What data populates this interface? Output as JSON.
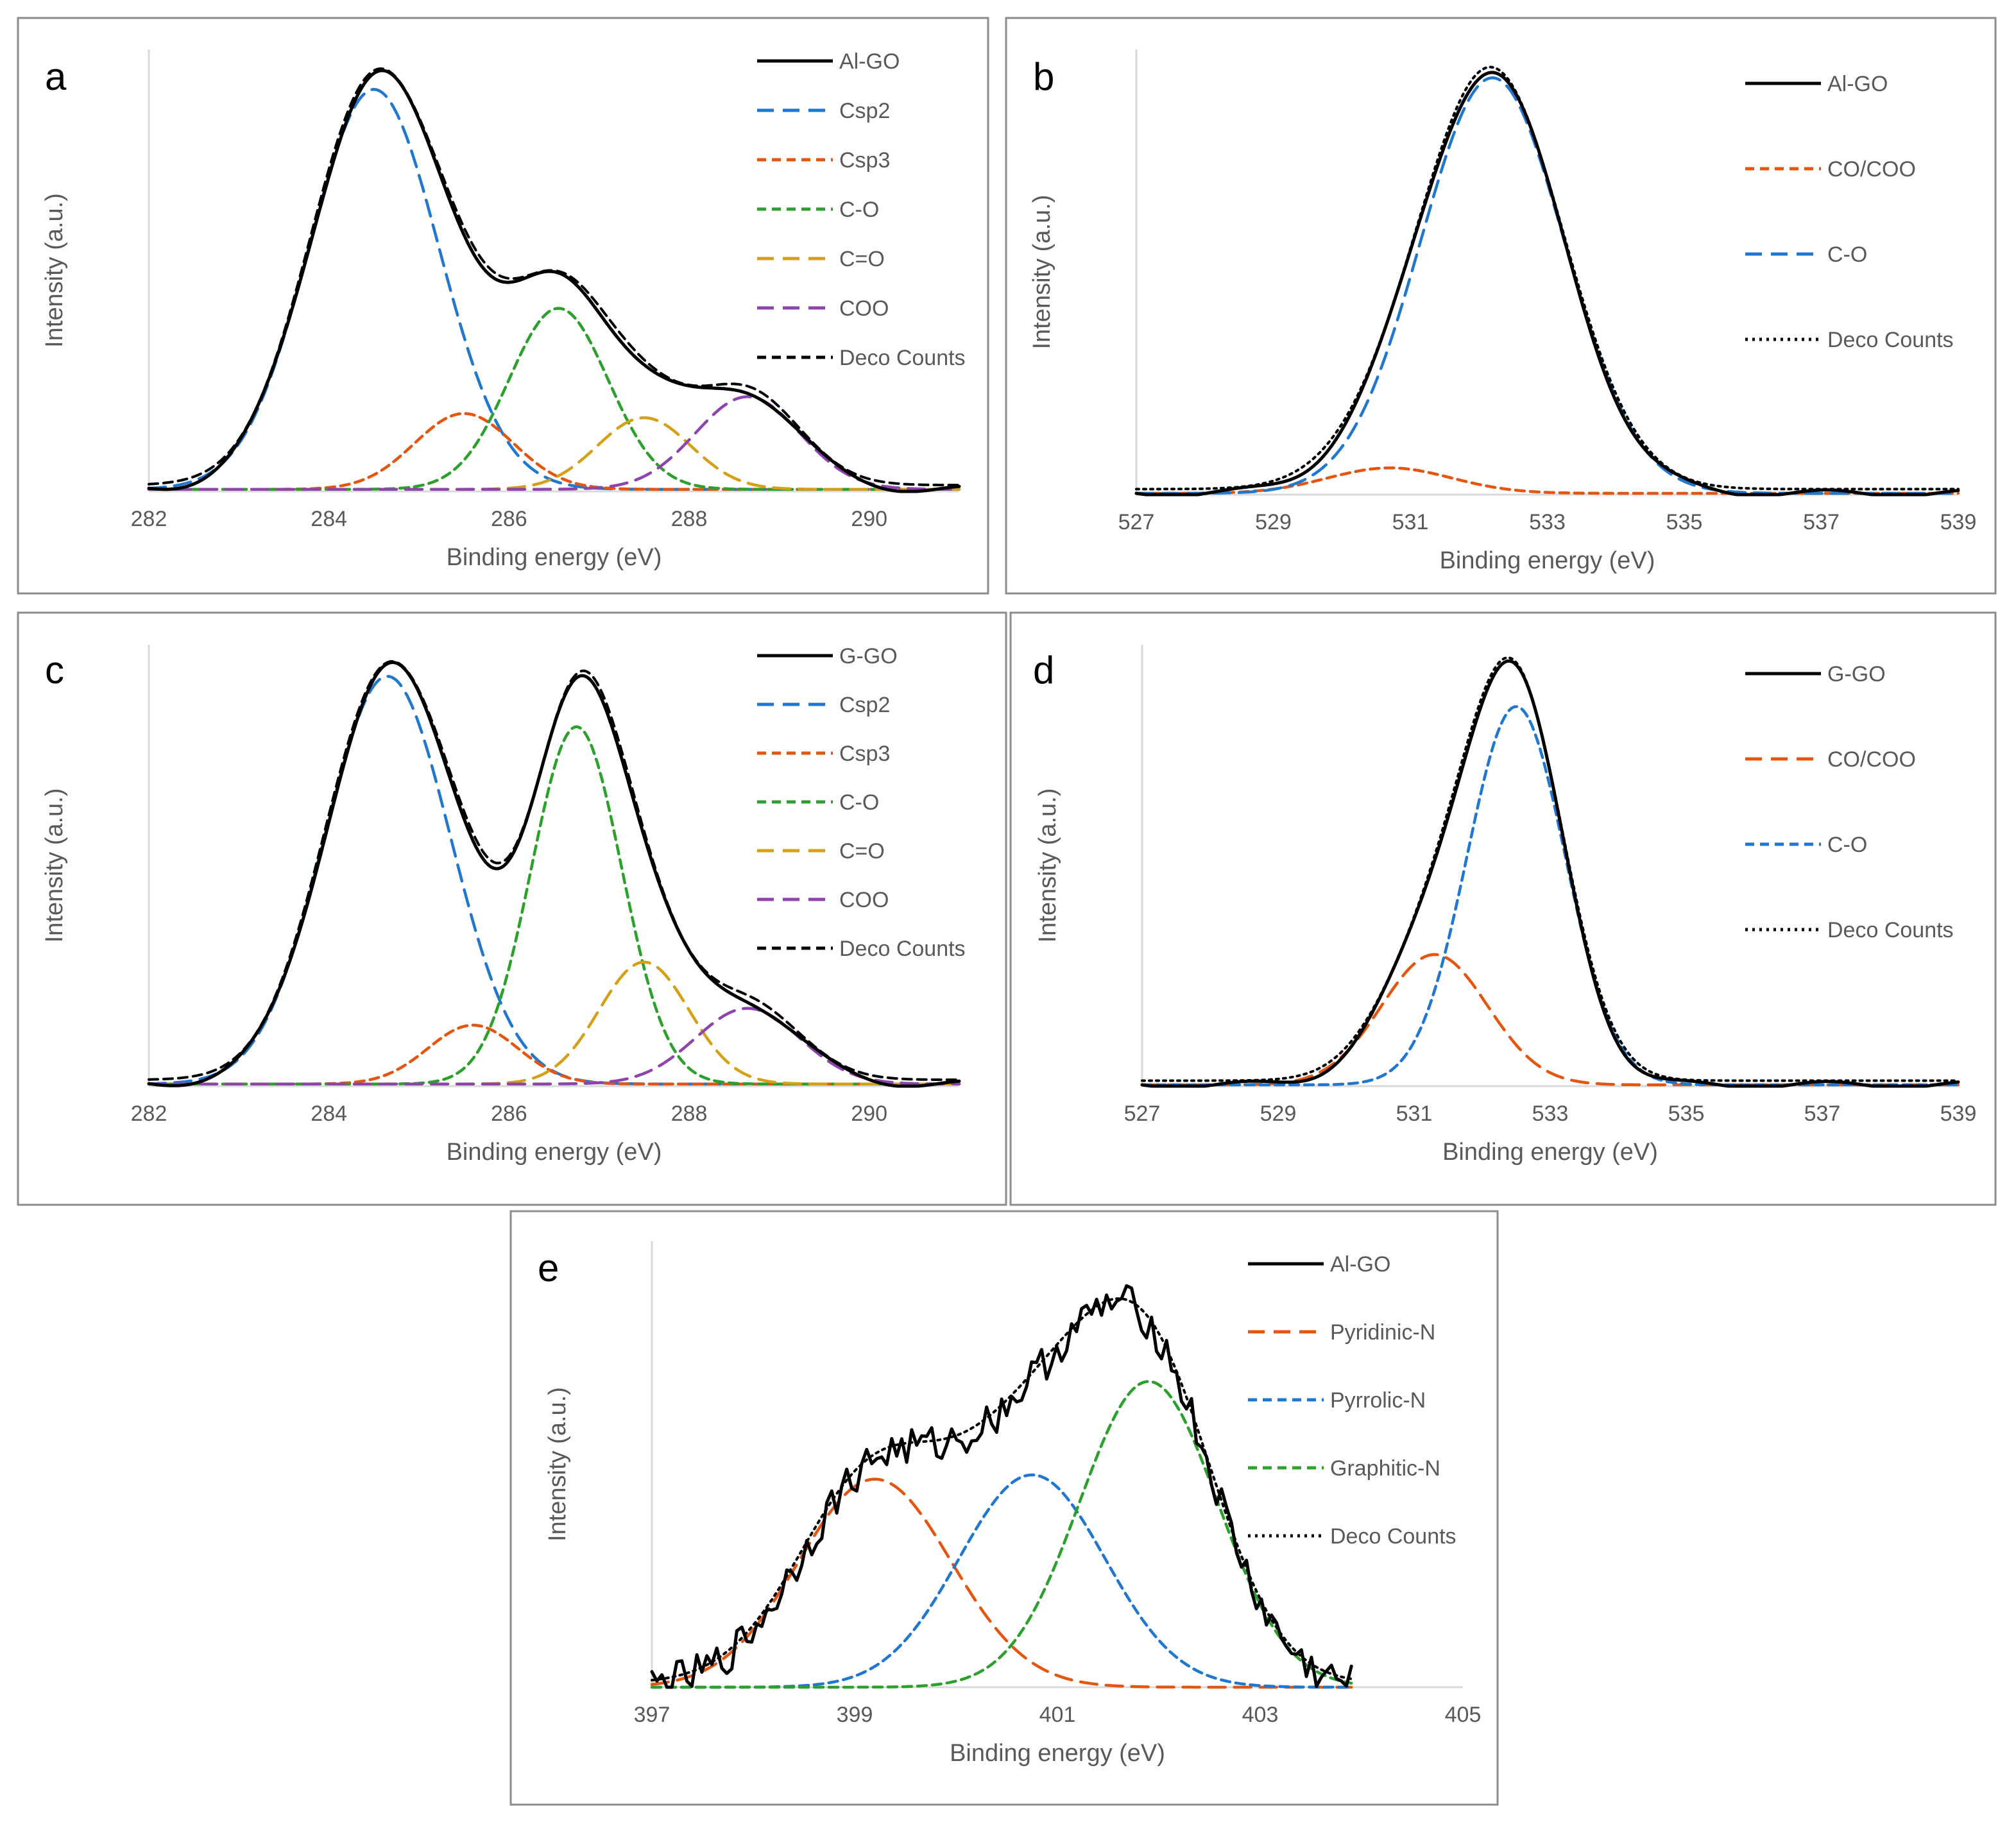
{
  "figure": "XPS spectra",
  "colors": {
    "sample": "#000000",
    "blue": "#1f77d0",
    "orange": "#e6550d",
    "green": "#2ca02c",
    "gold": "#d4a017",
    "purple": "#8e44ad",
    "axis": "#d9d9d9",
    "text": "#595959"
  },
  "chart_data": [
    {
      "panel": "a",
      "type": "line",
      "xlabel": "Binding energy (eV)",
      "ylabel": "Intensity (a.u.)",
      "xlim": [
        282,
        291
      ],
      "xticks": [
        "282",
        "284",
        "286",
        "288",
        "290"
      ],
      "ylim": [
        0,
        1.05
      ],
      "background": 0.005,
      "components": [
        {
          "name": "Csp2",
          "center": 284.5,
          "height": 0.95,
          "sigma": 0.72,
          "color": "#1f77d0",
          "style": "dash"
        },
        {
          "name": "Csp3",
          "center": 285.5,
          "height": 0.18,
          "sigma": 0.55,
          "color": "#e6550d",
          "style": "shortdash"
        },
        {
          "name": "C-O",
          "center": 286.55,
          "height": 0.43,
          "sigma": 0.55,
          "color": "#2ca02c",
          "style": "shortdash"
        },
        {
          "name": "C=O",
          "center": 287.5,
          "height": 0.17,
          "sigma": 0.52,
          "color": "#d4a017",
          "style": "dash"
        },
        {
          "name": "COO",
          "center": 288.65,
          "height": 0.22,
          "sigma": 0.58,
          "color": "#8e44ad",
          "style": "dash"
        }
      ],
      "legend": [
        {
          "label": "Al-GO",
          "style": "solid",
          "color": "#000000"
        },
        {
          "label": "Csp2",
          "style": "dash",
          "color": "#1f77d0"
        },
        {
          "label": "Csp3",
          "style": "shortdash",
          "color": "#e6550d"
        },
        {
          "label": "C-O",
          "style": "shortdash",
          "color": "#2ca02c"
        },
        {
          "label": "C=O",
          "style": "dash",
          "color": "#d4a017"
        },
        {
          "label": "COO",
          "style": "dash",
          "color": "#8e44ad"
        },
        {
          "label": "Deco Counts",
          "style": "shortdash",
          "color": "#000000"
        }
      ]
    },
    {
      "panel": "b",
      "type": "line",
      "xlabel": "Binding energy (eV)",
      "ylabel": "Intensity (a.u.)",
      "xlim": [
        527,
        539
      ],
      "xticks": [
        "527",
        "529",
        "531",
        "533",
        "535",
        "537",
        "539"
      ],
      "ylim": [
        0,
        1.05
      ],
      "background": 0.003,
      "components": [
        {
          "name": "CO/COO",
          "center": 530.7,
          "height": 0.06,
          "sigma": 0.9,
          "color": "#e6550d",
          "style": "shortdash"
        },
        {
          "name": "C-O",
          "center": 532.2,
          "height": 0.98,
          "sigma": 1.05,
          "color": "#1f77d0",
          "style": "dash"
        }
      ],
      "legend": [
        {
          "label": "Al-GO",
          "style": "solid",
          "color": "#000000"
        },
        {
          "label": "CO/COO",
          "style": "shortdash",
          "color": "#e6550d"
        },
        {
          "label": "C-O",
          "style": "dash",
          "color": "#1f77d0"
        },
        {
          "label": "Deco Counts",
          "style": "dot",
          "color": "#000000"
        }
      ]
    },
    {
      "panel": "c",
      "type": "line",
      "xlabel": "Binding energy (eV)",
      "ylabel": "Intensity (a.u.)",
      "xlim": [
        282,
        291
      ],
      "xticks": [
        "282",
        "284",
        "286",
        "288",
        "290"
      ],
      "ylim": [
        0,
        1.05
      ],
      "background": 0.005,
      "components": [
        {
          "name": "Csp2",
          "center": 284.65,
          "height": 0.97,
          "sigma": 0.7,
          "color": "#1f77d0",
          "style": "dash"
        },
        {
          "name": "Csp3",
          "center": 285.6,
          "height": 0.14,
          "sigma": 0.5,
          "color": "#e6550d",
          "style": "shortdash"
        },
        {
          "name": "C-O",
          "center": 286.75,
          "height": 0.85,
          "sigma": 0.5,
          "color": "#2ca02c",
          "style": "shortdash"
        },
        {
          "name": "C=O",
          "center": 287.5,
          "height": 0.29,
          "sigma": 0.5,
          "color": "#d4a017",
          "style": "dash"
        },
        {
          "name": "COO",
          "center": 288.65,
          "height": 0.18,
          "sigma": 0.58,
          "color": "#8e44ad",
          "style": "dash"
        }
      ],
      "legend": [
        {
          "label": "G-GO",
          "style": "solid",
          "color": "#000000"
        },
        {
          "label": "Csp2",
          "style": "dash",
          "color": "#1f77d0"
        },
        {
          "label": "Csp3",
          "style": "shortdash",
          "color": "#e6550d"
        },
        {
          "label": "C-O",
          "style": "shortdash",
          "color": "#2ca02c"
        },
        {
          "label": "C=O",
          "style": "dash",
          "color": "#d4a017"
        },
        {
          "label": "COO",
          "style": "dash",
          "color": "#8e44ad"
        },
        {
          "label": "Deco Counts",
          "style": "shortdash",
          "color": "#000000"
        }
      ]
    },
    {
      "panel": "d",
      "type": "line",
      "xlabel": "Binding energy (eV)",
      "ylabel": "Intensity (a.u.)",
      "xlim": [
        527,
        539
      ],
      "xticks": [
        "527",
        "529",
        "531",
        "533",
        "535",
        "537",
        "539"
      ],
      "ylim": [
        0,
        1.05
      ],
      "background": 0.003,
      "components": [
        {
          "name": "CO/COO",
          "center": 531.3,
          "height": 0.31,
          "sigma": 0.78,
          "color": "#e6550d",
          "style": "dash"
        },
        {
          "name": "C-O",
          "center": 532.5,
          "height": 0.9,
          "sigma": 0.72,
          "color": "#1f77d0",
          "style": "shortdash"
        }
      ],
      "legend": [
        {
          "label": "G-GO",
          "style": "solid",
          "color": "#000000"
        },
        {
          "label": "CO/COO",
          "style": "dash",
          "color": "#e6550d"
        },
        {
          "label": "C-O",
          "style": "shortdash",
          "color": "#1f77d0"
        },
        {
          "label": "Deco Counts",
          "style": "dot",
          "color": "#000000"
        }
      ]
    },
    {
      "panel": "e",
      "type": "line",
      "xlabel": "Binding energy (eV)",
      "ylabel": "Intensity (a.u.)",
      "xlim": [
        397,
        405
      ],
      "xticks": [
        "397",
        "399",
        "401",
        "403",
        "405"
      ],
      "ylim": [
        0,
        1.05
      ],
      "background": 0.0,
      "domain": [
        397,
        403.9
      ],
      "components": [
        {
          "name": "Pyridinic-N",
          "center": 399.2,
          "height": 0.49,
          "sigma": 0.75,
          "color": "#e6550d",
          "style": "dash"
        },
        {
          "name": "Pyrrolic-N",
          "center": 400.75,
          "height": 0.5,
          "sigma": 0.72,
          "color": "#1f77d0",
          "style": "shortdash"
        },
        {
          "name": "Graphitic-N",
          "center": 401.9,
          "height": 0.72,
          "sigma": 0.68,
          "color": "#2ca02c",
          "style": "shortdash"
        }
      ],
      "legend": [
        {
          "label": "Al-GO",
          "style": "solid",
          "color": "#000000"
        },
        {
          "label": "Pyridinic-N",
          "style": "dash",
          "color": "#e6550d"
        },
        {
          "label": "Pyrrolic-N",
          "style": "shortdash",
          "color": "#1f77d0"
        },
        {
          "label": "Graphitic-N",
          "style": "shortdash",
          "color": "#2ca02c"
        },
        {
          "label": "Deco Counts",
          "style": "dot",
          "color": "#000000"
        }
      ]
    }
  ]
}
